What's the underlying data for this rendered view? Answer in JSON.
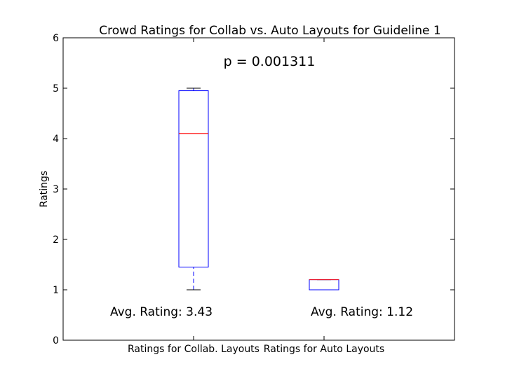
{
  "chart_data": {
    "type": "box",
    "title": "Crowd Ratings for Collab vs. Auto Layouts for Guideline 1",
    "xlabel": "",
    "ylabel": "Ratings",
    "ylim": [
      0,
      6
    ],
    "yticks": [
      0,
      1,
      2,
      3,
      4,
      5,
      6
    ],
    "grid": false,
    "categories": [
      "Ratings for Collab. Layouts",
      "Ratings for Auto Layouts"
    ],
    "boxes": [
      {
        "whisker_low": 1.0,
        "q1": 1.45,
        "median": 4.1,
        "q3": 4.95,
        "whisker_high": 5.0
      },
      {
        "whisker_low": 1.0,
        "q1": 1.0,
        "median": 1.2,
        "q3": 1.2,
        "whisker_high": 1.2
      }
    ],
    "annotations": {
      "p_value": "p = 0.001311",
      "averages": [
        "Avg. Rating: 3.43",
        "Avg. Rating: 1.12"
      ]
    },
    "colors": {
      "box": "#0000ff",
      "median": "#ff0000",
      "axes": "#000000"
    }
  }
}
